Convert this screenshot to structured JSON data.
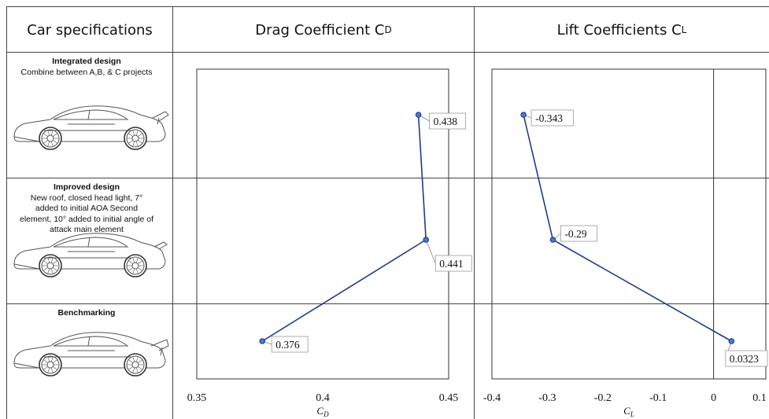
{
  "columns": {
    "specs": "Car specifications",
    "drag_main": "Drag Coefficient C",
    "drag_sub": "D",
    "lift_main": "Lift Coefficients C",
    "lift_sub": "L"
  },
  "rows": [
    {
      "title": "Integrated design",
      "desc": "Combine between A,B, & C projects",
      "icon": "sports-car-rear-wing-icon"
    },
    {
      "title": "Improved design",
      "desc": "New roof, closed head light, 7° added to initial AOA Second element, 10° added to initial angle of attack main element",
      "icon": "sports-car-small-wing-icon"
    },
    {
      "title": "Benchmarking",
      "desc": "",
      "icon": "sports-car-benchmark-icon"
    }
  ],
  "chart_data": [
    {
      "type": "line",
      "xlabel_main": "C",
      "xlabel_sub": "D",
      "xlim": [
        0.35,
        0.45
      ],
      "xticks": [
        "0.35",
        "0.4",
        "0.45"
      ],
      "xtick_values": [
        0.35,
        0.4,
        0.45
      ],
      "color": "#1f3c88",
      "points": [
        {
          "row": "Integrated design",
          "value": 0.438,
          "label": "0.438"
        },
        {
          "row": "Improved design",
          "value": 0.441,
          "label": "0.441"
        },
        {
          "row": "Benchmarking",
          "value": 0.376,
          "label": "0.376"
        }
      ]
    },
    {
      "type": "line",
      "xlabel_main": "C",
      "xlabel_sub": "L",
      "xlim": [
        -0.4,
        0.1
      ],
      "xticks": [
        "-0.4",
        "-0.3",
        "-0.2",
        "-0.1",
        "0",
        "0.1"
      ],
      "xtick_values": [
        -0.4,
        -0.3,
        -0.2,
        -0.1,
        0,
        0.1
      ],
      "color": "#1f3c88",
      "points": [
        {
          "row": "Integrated design",
          "value": -0.343,
          "label": "-0.343"
        },
        {
          "row": "Improved design",
          "value": -0.29,
          "label": "-0.29"
        },
        {
          "row": "Benchmarking",
          "value": 0.0323,
          "label": "0.0323"
        }
      ]
    }
  ]
}
